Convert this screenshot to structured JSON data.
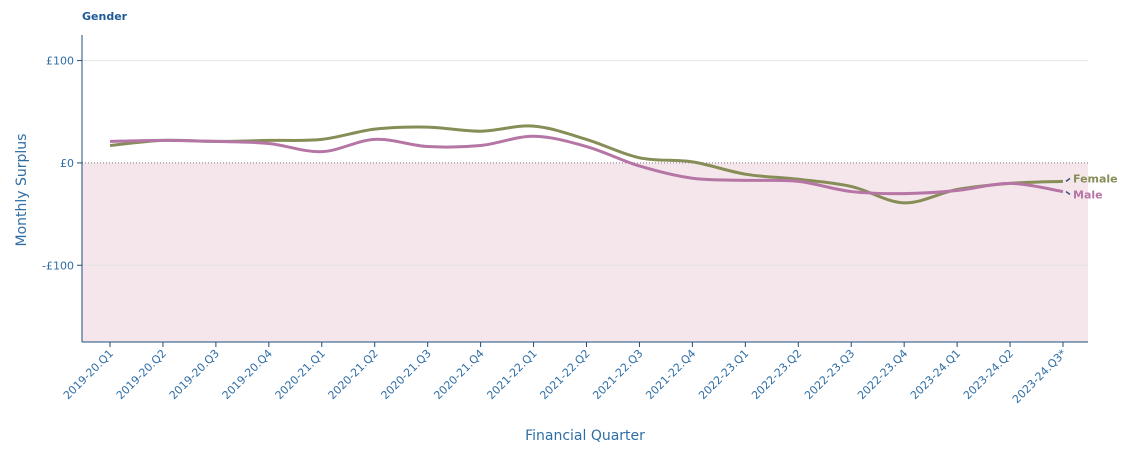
{
  "chart_data": {
    "type": "line",
    "title": "Gender",
    "x_label": "Financial Quarter",
    "y_label": "Monthly Surplus",
    "categories": [
      "2019-20.Q1",
      "2019-20.Q2",
      "2019-20.Q3",
      "2019-20.Q4",
      "2020-21.Q1",
      "2020-21.Q2",
      "2020-21.Q3",
      "2020-21.Q4",
      "2021-22.Q1",
      "2021-22.Q2",
      "2021-22.Q3",
      "2021-22.Q4",
      "2022-23.Q1",
      "2022-23.Q2",
      "2022-23.Q3",
      "2022-23.Q4",
      "2023-24.Q1",
      "2023-24.Q2",
      "2023-24.Q3*"
    ],
    "series": [
      {
        "name": "Female",
        "color": "#878d57",
        "values": [
          17,
          22,
          21,
          22,
          23,
          33,
          35,
          31,
          36,
          23,
          5,
          1,
          -11,
          -16,
          -23,
          -39,
          -26,
          -20,
          -18
        ]
      },
      {
        "name": "Male",
        "color": "#b576a6",
        "values": [
          21,
          22,
          21,
          19,
          11,
          23,
          16,
          17,
          26,
          16,
          -3,
          -15,
          -17,
          -18,
          -28,
          -30,
          -27,
          -20,
          -28
        ]
      }
    ],
    "ylim": [
      -175,
      125
    ],
    "yticks": [
      {
        "value": 100,
        "label": "£100"
      },
      {
        "value": 0,
        "label": "£0"
      },
      {
        "value": -100,
        "label": "-£100"
      }
    ],
    "grid": true
  }
}
